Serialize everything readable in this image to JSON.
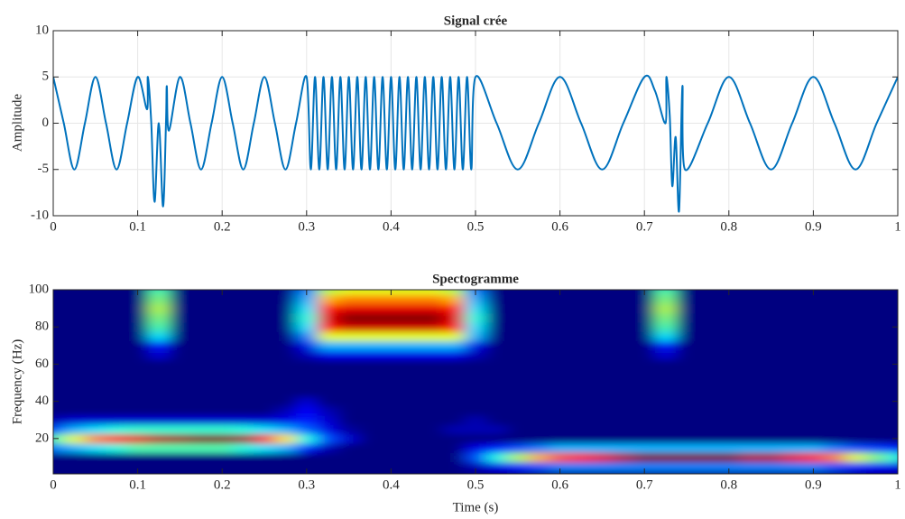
{
  "chart_data": [
    {
      "type": "line",
      "title": "Signal crée",
      "ylabel": "Amplitude",
      "color": "#0072bd",
      "grid": true,
      "xlim": [
        0,
        1
      ],
      "ylim": [
        -10,
        10
      ],
      "xticks": [
        0,
        0.1,
        0.2,
        0.3,
        0.4,
        0.5,
        0.6,
        0.7,
        0.8,
        0.9,
        1
      ],
      "yticks": [
        -10,
        -5,
        0,
        5,
        10
      ],
      "x": [
        0,
        0.0125,
        0.025,
        0.0375,
        0.05,
        0.0625,
        0.075,
        0.0875,
        0.1,
        0.111,
        0.112,
        0.116,
        0.12,
        0.125,
        0.13,
        0.1335,
        0.1345,
        0.137,
        0.15,
        0.1625,
        0.175,
        0.1875,
        0.2,
        0.2125,
        0.225,
        0.2375,
        0.25,
        0.2625,
        0.275,
        0.2875,
        0.3,
        0.305,
        0.31,
        0.315,
        0.32,
        0.325,
        0.33,
        0.335,
        0.34,
        0.345,
        0.35,
        0.355,
        0.36,
        0.365,
        0.37,
        0.375,
        0.38,
        0.385,
        0.39,
        0.395,
        0.4,
        0.405,
        0.41,
        0.415,
        0.42,
        0.425,
        0.43,
        0.435,
        0.44,
        0.445,
        0.45,
        0.455,
        0.46,
        0.465,
        0.47,
        0.475,
        0.48,
        0.485,
        0.49,
        0.495,
        0.5,
        0.525,
        0.55,
        0.575,
        0.6,
        0.625,
        0.65,
        0.675,
        0.7,
        0.7125,
        0.725,
        0.726,
        0.73,
        0.733,
        0.737,
        0.741,
        0.745,
        0.748,
        0.775,
        0.8,
        0.825,
        0.85,
        0.875,
        0.9,
        0.925,
        0.95,
        0.975,
        1
      ],
      "values": [
        5,
        0,
        -5,
        0,
        5,
        0,
        -5,
        0,
        5,
        1.5,
        5,
        0.2,
        -8.5,
        0,
        -9,
        0,
        4,
        -0.8,
        5,
        0,
        -5,
        0,
        5,
        0,
        -5,
        0,
        5,
        0,
        -5,
        0,
        5,
        -5,
        5,
        -5,
        5,
        -5,
        5,
        -5,
        5,
        -5,
        5,
        -5,
        5,
        -5,
        5,
        -5,
        5,
        -5,
        5,
        -5,
        5,
        -5,
        5,
        -5,
        5,
        -5,
        5,
        -5,
        5,
        -5,
        5,
        -5,
        5,
        -5,
        5,
        -5,
        5,
        -5,
        5,
        -5,
        5,
        0,
        -5,
        0,
        5,
        0,
        -5,
        0,
        5,
        3.5,
        0,
        5,
        0.8,
        -6.8,
        -1.5,
        -9.5,
        4,
        -5,
        0,
        5,
        0,
        -5,
        0,
        5,
        0,
        -5,
        0,
        5
      ]
    },
    {
      "type": "heatmap",
      "title": "Spectogramme",
      "xlabel": "Time (s)",
      "ylabel": "Frequency (Hz)",
      "colormap": "jet",
      "xlim": [
        0,
        1
      ],
      "ylim": [
        1,
        100
      ],
      "xticks": [
        0,
        0.1,
        0.2,
        0.3,
        0.4,
        0.5,
        0.6,
        0.7,
        0.8,
        0.9,
        1
      ],
      "yticks": [
        20,
        40,
        60,
        80,
        100
      ],
      "x": [
        0,
        0.025,
        0.05,
        0.075,
        0.1,
        0.125,
        0.15,
        0.175,
        0.2,
        0.225,
        0.25,
        0.275,
        0.3,
        0.325,
        0.35,
        0.375,
        0.4,
        0.425,
        0.45,
        0.475,
        0.5,
        0.525,
        0.55,
        0.575,
        0.6,
        0.625,
        0.65,
        0.675,
        0.7,
        0.725,
        0.75,
        0.775,
        0.8,
        0.825,
        0.85,
        0.875,
        0.9,
        0.925,
        0.95,
        0.975,
        1
      ],
      "y": [
        0,
        5,
        10,
        15,
        20,
        25,
        30,
        35,
        40,
        45,
        50,
        55,
        60,
        65,
        70,
        75,
        80,
        85,
        90,
        95,
        100
      ],
      "z": [
        [
          0,
          0,
          0,
          0,
          0,
          0,
          0,
          0,
          0,
          0,
          0,
          0,
          0,
          0,
          0,
          0,
          0,
          0,
          0,
          0,
          0,
          0,
          0,
          0,
          0,
          0,
          0,
          0,
          0,
          0,
          0,
          0,
          0,
          0,
          0,
          0,
          0,
          0,
          0,
          0,
          0
        ],
        [
          0,
          0,
          0,
          0,
          0,
          0,
          0,
          0,
          0,
          0,
          0,
          0,
          0,
          0,
          0,
          0,
          0,
          0,
          0,
          0,
          0.05,
          0.1,
          0.15,
          0.2,
          0.25,
          0.25,
          0.25,
          0.25,
          0.25,
          0.25,
          0.25,
          0.25,
          0.25,
          0.25,
          0.25,
          0.25,
          0.25,
          0.2,
          0.15,
          0.12,
          0.1
        ],
        [
          0,
          0,
          0,
          0,
          0,
          0,
          0,
          0,
          0,
          0,
          0,
          0,
          0,
          0,
          0,
          0,
          0,
          0,
          0,
          0,
          0.2,
          0.4,
          0.55,
          0.7,
          0.8,
          0.85,
          0.9,
          0.95,
          1,
          1,
          1,
          1,
          1,
          0.95,
          0.95,
          0.9,
          0.85,
          0.75,
          0.6,
          0.5,
          0.4
        ],
        [
          0.25,
          0.3,
          0.35,
          0.4,
          0.45,
          0.45,
          0.45,
          0.45,
          0.45,
          0.4,
          0.35,
          0.3,
          0.15,
          0.05,
          0,
          0,
          0,
          0,
          0,
          0,
          0.1,
          0.15,
          0.2,
          0.25,
          0.3,
          0.3,
          0.3,
          0.3,
          0.3,
          0.3,
          0.3,
          0.3,
          0.3,
          0.3,
          0.3,
          0.3,
          0.3,
          0.25,
          0.2,
          0.18,
          0.15
        ],
        [
          0.45,
          0.6,
          0.75,
          0.85,
          0.9,
          0.95,
          0.97,
          1,
          1,
          0.97,
          0.85,
          0.65,
          0.4,
          0.2,
          0.08,
          0,
          0,
          0,
          0,
          0,
          0,
          0,
          0,
          0,
          0,
          0,
          0,
          0,
          0,
          0,
          0,
          0,
          0,
          0,
          0,
          0,
          0,
          0,
          0,
          0,
          0
        ],
        [
          0.2,
          0.3,
          0.35,
          0.4,
          0.42,
          0.42,
          0.42,
          0.42,
          0.42,
          0.4,
          0.35,
          0.3,
          0.22,
          0.1,
          0.03,
          0,
          0,
          0,
          0,
          0.05,
          0.05,
          0.05,
          0,
          0,
          0,
          0,
          0,
          0,
          0,
          0,
          0,
          0,
          0,
          0,
          0,
          0,
          0,
          0,
          0,
          0,
          0
        ],
        [
          0.05,
          0.08,
          0.08,
          0.08,
          0.08,
          0.08,
          0.08,
          0.08,
          0.08,
          0.08,
          0.08,
          0.1,
          0.15,
          0.08,
          0,
          0,
          0,
          0,
          0,
          0,
          0.05,
          0,
          0,
          0,
          0,
          0,
          0,
          0,
          0,
          0,
          0,
          0,
          0,
          0,
          0,
          0,
          0,
          0,
          0,
          0,
          0
        ],
        [
          0,
          0,
          0,
          0,
          0,
          0,
          0,
          0,
          0,
          0,
          0,
          0.05,
          0.12,
          0.05,
          0,
          0,
          0,
          0,
          0,
          0,
          0,
          0,
          0,
          0,
          0,
          0,
          0,
          0,
          0,
          0,
          0,
          0,
          0,
          0,
          0,
          0,
          0,
          0,
          0,
          0,
          0
        ],
        [
          0,
          0,
          0,
          0,
          0,
          0,
          0,
          0,
          0,
          0,
          0,
          0,
          0.08,
          0,
          0,
          0,
          0,
          0,
          0,
          0,
          0,
          0,
          0,
          0,
          0,
          0,
          0,
          0,
          0,
          0,
          0,
          0,
          0,
          0,
          0,
          0,
          0,
          0,
          0,
          0,
          0
        ],
        [
          0,
          0,
          0,
          0,
          0,
          0,
          0,
          0,
          0,
          0,
          0,
          0,
          0,
          0,
          0,
          0,
          0,
          0,
          0,
          0,
          0,
          0,
          0,
          0,
          0,
          0,
          0,
          0,
          0,
          0,
          0,
          0,
          0,
          0,
          0,
          0,
          0,
          0,
          0,
          0,
          0
        ],
        [
          0,
          0,
          0,
          0,
          0,
          0,
          0,
          0,
          0,
          0,
          0,
          0,
          0,
          0,
          0,
          0,
          0,
          0,
          0,
          0,
          0,
          0,
          0,
          0,
          0,
          0,
          0,
          0,
          0,
          0,
          0,
          0,
          0,
          0,
          0,
          0,
          0,
          0,
          0,
          0,
          0
        ],
        [
          0,
          0,
          0,
          0,
          0,
          0,
          0,
          0,
          0,
          0,
          0,
          0,
          0,
          0,
          0,
          0,
          0,
          0,
          0,
          0,
          0,
          0,
          0,
          0,
          0,
          0,
          0,
          0,
          0,
          0,
          0,
          0,
          0,
          0,
          0,
          0,
          0,
          0,
          0,
          0,
          0
        ],
        [
          0,
          0,
          0,
          0,
          0,
          0,
          0,
          0,
          0,
          0,
          0,
          0,
          0,
          0,
          0,
          0,
          0,
          0,
          0,
          0,
          0,
          0,
          0,
          0,
          0,
          0,
          0,
          0,
          0,
          0,
          0,
          0,
          0,
          0,
          0,
          0,
          0,
          0,
          0,
          0,
          0
        ],
        [
          0,
          0,
          0,
          0,
          0,
          0.08,
          0,
          0,
          0,
          0,
          0,
          0,
          0.05,
          0.1,
          0.1,
          0.1,
          0.1,
          0.1,
          0.1,
          0.1,
          0.05,
          0,
          0,
          0,
          0,
          0,
          0,
          0,
          0,
          0.08,
          0,
          0,
          0,
          0,
          0,
          0,
          0,
          0,
          0,
          0,
          0
        ],
        [
          0,
          0,
          0,
          0,
          0,
          0.15,
          0,
          0,
          0,
          0,
          0,
          0,
          0.1,
          0.3,
          0.3,
          0.3,
          0.3,
          0.3,
          0.3,
          0.3,
          0.1,
          0,
          0,
          0,
          0,
          0,
          0,
          0,
          0,
          0.15,
          0,
          0,
          0,
          0,
          0,
          0,
          0,
          0,
          0,
          0,
          0
        ],
        [
          0,
          0,
          0,
          0,
          0,
          0.35,
          0,
          0,
          0,
          0,
          0,
          0,
          0.25,
          0.6,
          0.6,
          0.6,
          0.6,
          0.6,
          0.6,
          0.6,
          0.3,
          0,
          0,
          0,
          0,
          0,
          0,
          0,
          0,
          0.35,
          0,
          0,
          0,
          0,
          0,
          0,
          0,
          0,
          0,
          0,
          0
        ],
        [
          0,
          0,
          0,
          0,
          0,
          0.45,
          0,
          0,
          0,
          0,
          0,
          0,
          0.35,
          0.85,
          0.92,
          0.92,
          0.92,
          0.92,
          0.92,
          0.85,
          0.35,
          0,
          0,
          0,
          0,
          0,
          0,
          0,
          0,
          0.45,
          0,
          0,
          0,
          0,
          0,
          0,
          0,
          0,
          0,
          0,
          0
        ],
        [
          0,
          0,
          0,
          0,
          0,
          0.5,
          0,
          0,
          0,
          0,
          0,
          0,
          0.4,
          0.9,
          1,
          1,
          1,
          1,
          1,
          0.9,
          0.4,
          0,
          0,
          0,
          0,
          0,
          0,
          0,
          0,
          0.5,
          0,
          0,
          0,
          0,
          0,
          0,
          0,
          0,
          0,
          0,
          0
        ],
        [
          0,
          0,
          0,
          0,
          0,
          0.55,
          0,
          0,
          0,
          0,
          0,
          0,
          0.35,
          0.85,
          0.9,
          0.9,
          0.9,
          0.9,
          0.9,
          0.85,
          0.35,
          0,
          0,
          0,
          0,
          0,
          0,
          0,
          0,
          0.55,
          0,
          0,
          0,
          0,
          0,
          0,
          0,
          0,
          0,
          0,
          0
        ],
        [
          0,
          0,
          0,
          0,
          0,
          0.5,
          0,
          0,
          0,
          0,
          0,
          0,
          0.3,
          0.7,
          0.75,
          0.75,
          0.75,
          0.75,
          0.75,
          0.7,
          0.3,
          0,
          0,
          0,
          0,
          0,
          0,
          0,
          0,
          0.5,
          0,
          0,
          0,
          0,
          0,
          0,
          0,
          0,
          0,
          0,
          0
        ],
        [
          0,
          0,
          0,
          0,
          0,
          0.45,
          0,
          0,
          0,
          0,
          0,
          0,
          0.25,
          0.55,
          0.6,
          0.6,
          0.6,
          0.6,
          0.6,
          0.55,
          0.25,
          0,
          0,
          0,
          0,
          0,
          0,
          0,
          0,
          0.45,
          0,
          0,
          0,
          0,
          0,
          0,
          0,
          0,
          0,
          0,
          0
        ]
      ]
    }
  ]
}
